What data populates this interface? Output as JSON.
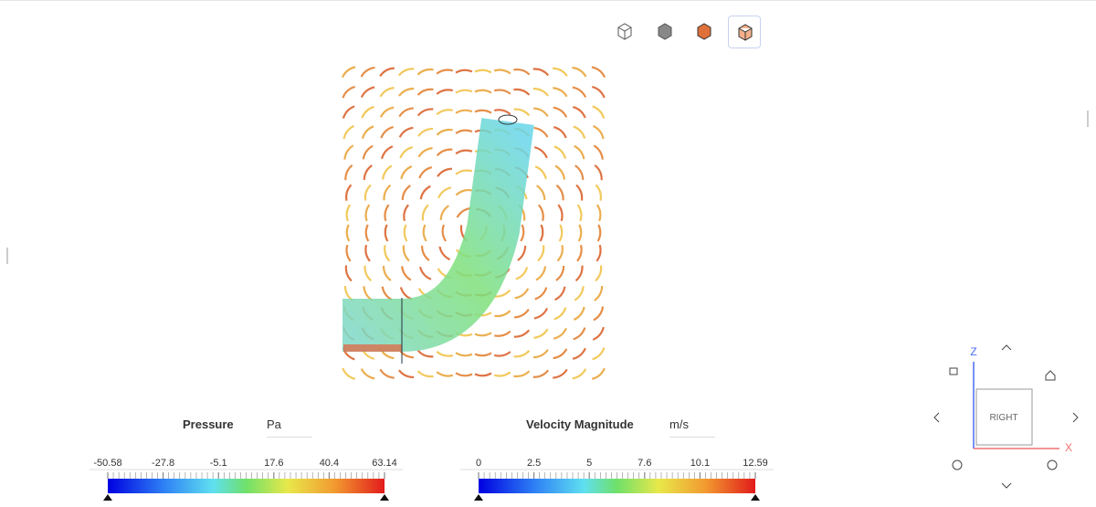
{
  "legends": [
    {
      "title": "Pressure",
      "unit": "Pa",
      "ticks": [
        -50.58,
        -27.8,
        -5.1,
        17.6,
        40.4,
        63.14
      ]
    },
    {
      "title": "Velocity Magnitude",
      "unit": "m/s",
      "ticks": [
        0,
        2.5,
        5,
        7.6,
        10.1,
        12.59
      ]
    }
  ],
  "view_cube": {
    "face": "RIGHT",
    "axis_up": "Z",
    "axis_right": "X"
  }
}
